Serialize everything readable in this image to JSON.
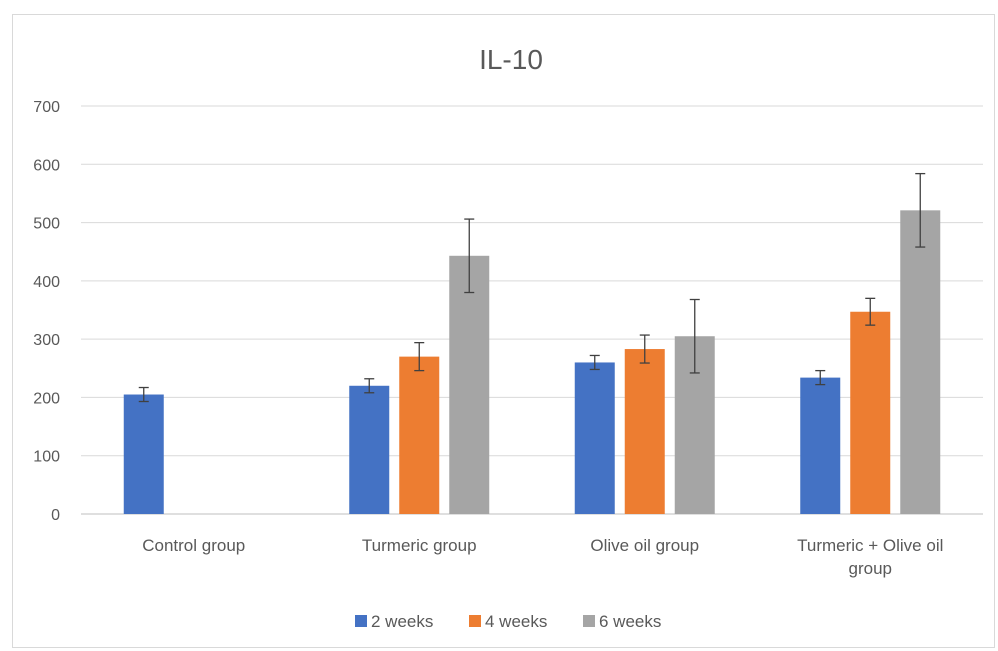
{
  "chart_data": {
    "type": "bar",
    "title": "IL-10",
    "xlabel": "",
    "ylabel": "",
    "ylim": [
      0,
      700
    ],
    "yticks": [
      0,
      100,
      200,
      300,
      400,
      500,
      600,
      700
    ],
    "grid": true,
    "legend_position": "bottom",
    "categories": [
      [
        "Control group"
      ],
      [
        "Turmeric group"
      ],
      [
        "Olive oil group"
      ],
      [
        "Turmeric + Olive oil",
        "group"
      ]
    ],
    "series": [
      {
        "name": "2 weeks",
        "color": "#4472c4",
        "values": [
          205,
          220,
          260,
          234
        ],
        "errors": [
          12,
          12,
          12,
          12
        ]
      },
      {
        "name": "4 weeks",
        "color": "#ed7d31",
        "values": [
          null,
          270,
          283,
          347
        ],
        "errors": [
          null,
          24,
          24,
          23
        ]
      },
      {
        "name": "6 weeks",
        "color": "#a5a5a5",
        "values": [
          null,
          443,
          305,
          521
        ],
        "errors": [
          null,
          63,
          63,
          63
        ]
      }
    ]
  }
}
